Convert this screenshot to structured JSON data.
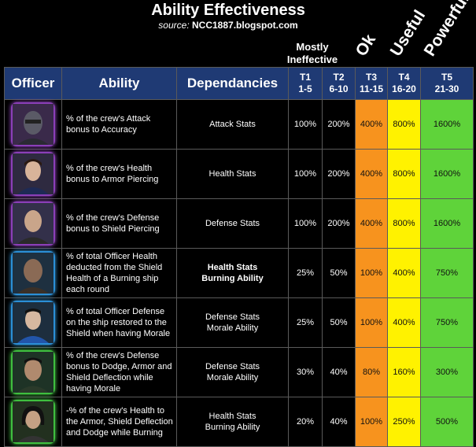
{
  "title": "Ability Effectiveness",
  "source_prefix": "source:",
  "source_site": "NCC1887.blogspot.com",
  "header_labels": {
    "mostly_line1": "Mostly",
    "mostly_line2": "Ineffective",
    "ok": "Ok",
    "useful": "Useful",
    "powerful": "Powerful"
  },
  "columns": {
    "officer": "Officer",
    "ability": "Ability",
    "dependancies": "Dependancies",
    "t1_name": "T1",
    "t1_range": "1-5",
    "t2_name": "T2",
    "t2_range": "6-10",
    "t3_name": "T3",
    "t3_range": "11-15",
    "t4_name": "T4",
    "t4_range": "16-20",
    "t5_name": "T5",
    "t5_range": "21-30"
  },
  "colors": {
    "header_bg": "#1f3a74",
    "ok": "#f7931e",
    "useful": "#fff200",
    "powerful": "#5fd33a"
  },
  "rows": [
    {
      "ability": "% of the crew's Attack bonus to Accuracy",
      "dep1": "Attack Stats",
      "dep2": "",
      "t1": "100%",
      "t2": "200%",
      "t3": "400%",
      "t4": "800%",
      "t5": "1600%"
    },
    {
      "ability": "% of the crew's Health bonus to Armor Piercing",
      "dep1": "Health Stats",
      "dep2": "",
      "t1": "100%",
      "t2": "200%",
      "t3": "400%",
      "t4": "800%",
      "t5": "1600%"
    },
    {
      "ability": "% of the crew's Defense bonus to Shield Piercing",
      "dep1": "Defense Stats",
      "dep2": "",
      "t1": "100%",
      "t2": "200%",
      "t3": "400%",
      "t4": "800%",
      "t5": "1600%"
    },
    {
      "ability": "% of total Officer Health deducted from the Shield Health of a Burning ship each round",
      "dep1": "Health Stats",
      "dep2": "Burning Ability",
      "t1": "25%",
      "t2": "50%",
      "t3": "100%",
      "t4": "400%",
      "t5": "750%"
    },
    {
      "ability": "% of total Officer Defense on the ship restored to the Shield when having Morale",
      "dep1": "Defense Stats",
      "dep2": "Morale Ability",
      "t1": "25%",
      "t2": "50%",
      "t3": "100%",
      "t4": "400%",
      "t5": "750%"
    },
    {
      "ability": "% of the crew's Defense bonus to Dodge, Armor and Shield Deflection while having Morale",
      "dep1": "Defense Stats",
      "dep2": "Morale Ability",
      "t1": "30%",
      "t2": "40%",
      "t3": "80%",
      "t4": "160%",
      "t5": "300%"
    },
    {
      "ability": "-% of the crew's Health to the Armor, Shield Deflection and Dodge while Burning",
      "dep1": "Health Stats",
      "dep2": "Burning Ability",
      "t1": "20%",
      "t2": "40%",
      "t3": "100%",
      "t4": "250%",
      "t5": "500%"
    }
  ]
}
